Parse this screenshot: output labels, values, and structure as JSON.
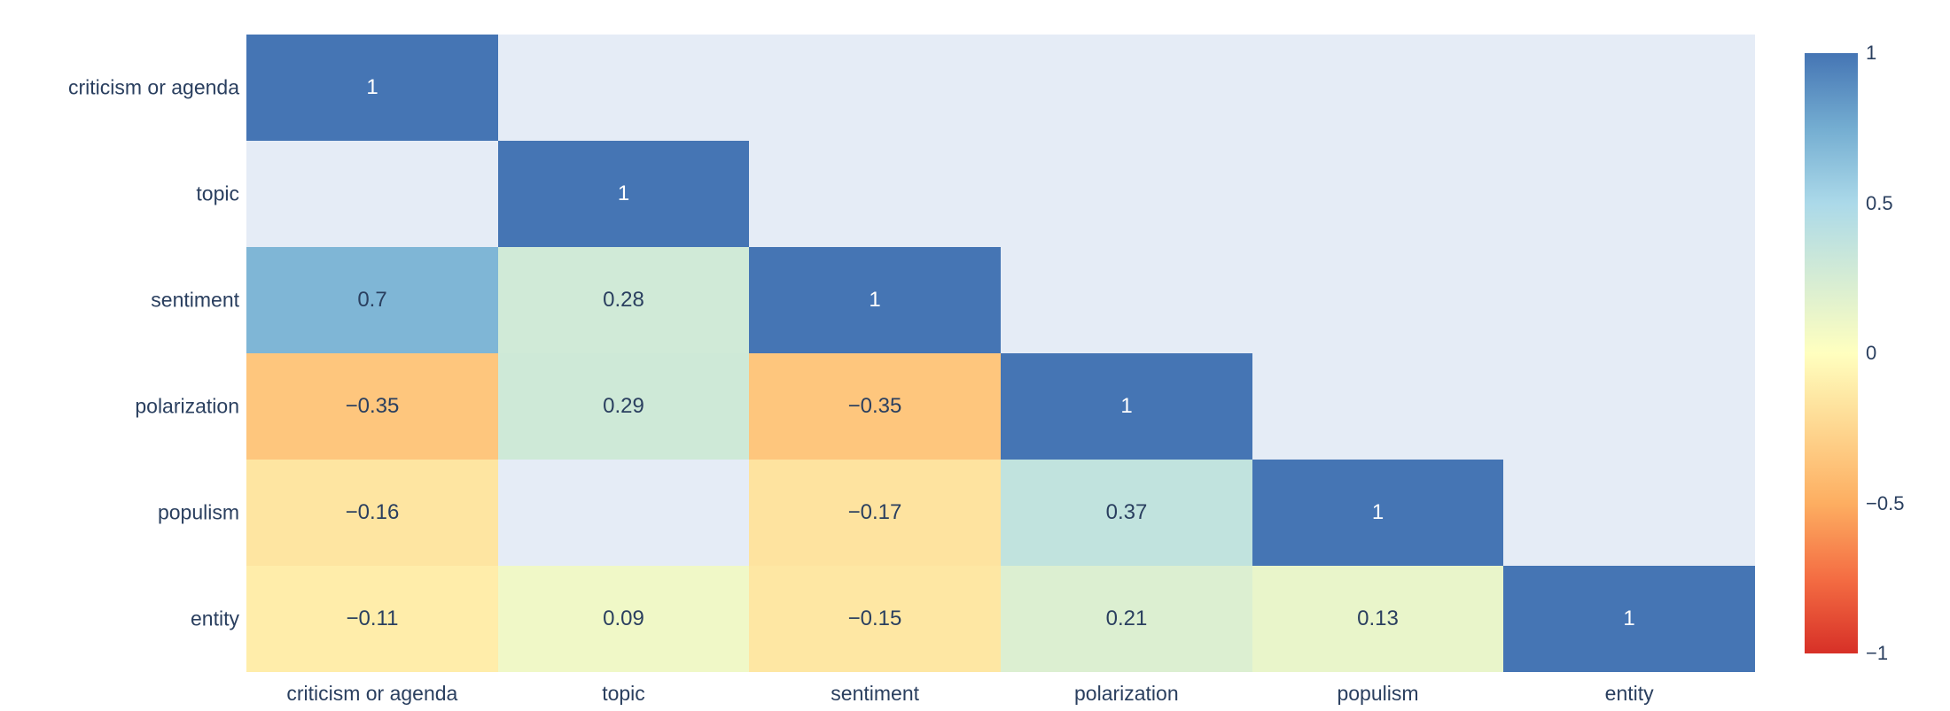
{
  "chart_data": {
    "type": "heatmap",
    "title": "",
    "xlabel": "",
    "ylabel": "",
    "variables": [
      "criticism or agenda",
      "topic",
      "sentiment",
      "polarization",
      "populism",
      "entity"
    ],
    "matrix": [
      [
        1,
        null,
        null,
        null,
        null,
        null
      ],
      [
        null,
        1,
        null,
        null,
        null,
        null
      ],
      [
        0.7,
        0.28,
        1,
        null,
        null,
        null
      ],
      [
        -0.35,
        0.29,
        -0.35,
        1,
        null,
        null
      ],
      [
        -0.16,
        null,
        -0.17,
        0.37,
        1,
        null
      ],
      [
        -0.11,
        0.09,
        -0.15,
        0.21,
        0.13,
        1
      ]
    ],
    "zmin": -1,
    "zmax": 1,
    "grid": false,
    "legend_position": "right-colorbar",
    "colorbar_ticks": [
      "1",
      "0.5",
      "0",
      "−0.5",
      "−1"
    ],
    "colorscale": [
      [
        0.0,
        "#d73027"
      ],
      [
        0.125,
        "#f46d43"
      ],
      [
        0.25,
        "#fdae61"
      ],
      [
        0.5,
        "#ffffbf"
      ],
      [
        0.75,
        "#abd9e9"
      ],
      [
        0.875,
        "#74add1"
      ],
      [
        1.0,
        "#4575b4"
      ]
    ],
    "colors": {
      "plot_background": "#e5ecf6",
      "figure_background": "#ffffff",
      "tick_text": "#2a3f5f",
      "annotation_dark": "#2a3f5f",
      "annotation_light": "#ffffff"
    }
  }
}
